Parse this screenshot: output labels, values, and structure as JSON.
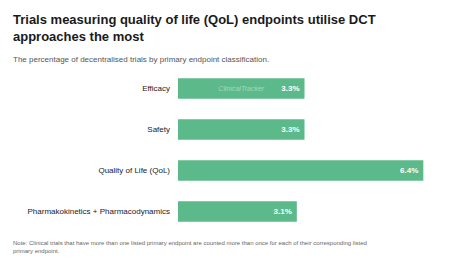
{
  "chart_data": {
    "type": "bar",
    "orientation": "horizontal",
    "title": "Trials measuring quality of life (QoL) endpoints utilise DCT\napproaches the most",
    "subtitle": "The percentage of decentralised trials by primary endpoint classification.",
    "note": "Note: Clinical trials that have more than one listed primary endpoint are counted more than once for each of their corresponding listed\nprimary endpoint.",
    "annotations": [
      "ClinicalTracker"
    ],
    "categories": [
      "Efficacy",
      "Safety",
      "Quality of Life (QoL)",
      "Pharmakokinetics + Pharmacodynamics"
    ],
    "values": [
      3.3,
      3.3,
      6.4,
      3.1
    ],
    "value_labels": [
      "3.3%",
      "3.3%",
      "6.4%",
      "3.1%"
    ],
    "data_labels": true,
    "color": "#5cba8a",
    "xlim": [
      0,
      7.2
    ],
    "tick_labels": "y",
    "grid": false
  }
}
